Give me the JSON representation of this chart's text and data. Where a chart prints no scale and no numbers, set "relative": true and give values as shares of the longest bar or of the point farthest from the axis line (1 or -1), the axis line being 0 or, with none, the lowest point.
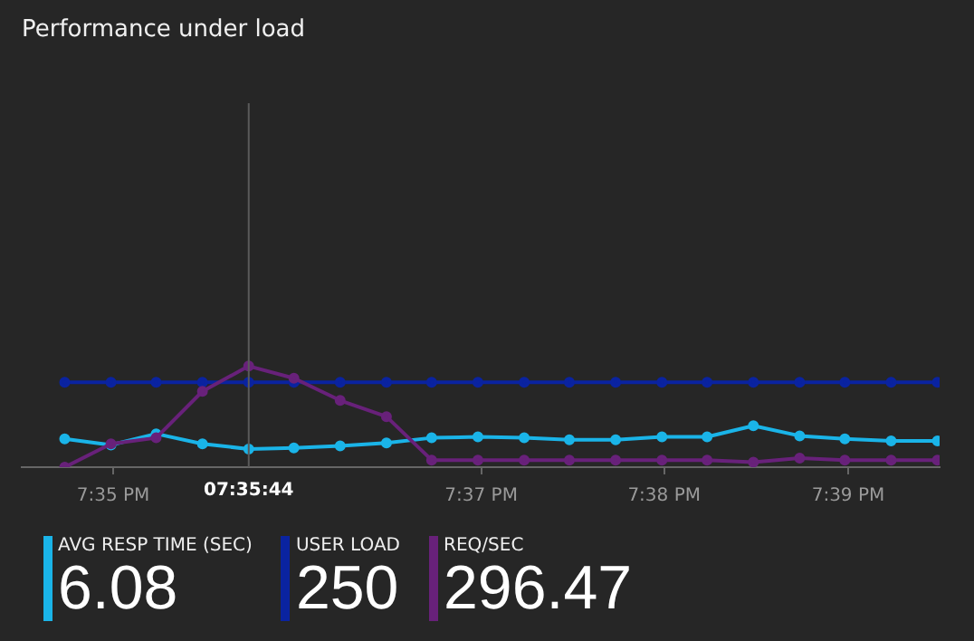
{
  "chart_data": {
    "type": "line",
    "title": "Performance under load",
    "relative": true,
    "legend": "bottom",
    "marker": "circle",
    "grid": false,
    "x": [
      19.5789,
      19.5831,
      19.5872,
      19.5914,
      19.5956,
      19.5997,
      19.6039,
      19.6081,
      19.6122,
      19.6164,
      19.6206,
      19.6247,
      19.6289,
      19.6331,
      19.6372,
      19.6414,
      19.6456,
      19.6497,
      19.6539,
      19.6581
    ],
    "xlim": [
      19.575,
      19.6583
    ],
    "xticks": [
      {
        "value": 19.5833,
        "label": "7:35 PM"
      },
      {
        "value": 19.6167,
        "label": "7:37 PM"
      },
      {
        "value": 19.6333,
        "label": "7:38 PM"
      },
      {
        "value": 19.65,
        "label": "7:39 PM"
      }
    ],
    "ref_lines": [
      {
        "axis": "x",
        "value": 19.5956,
        "color": "#5a5a5a"
      }
    ],
    "series": [
      {
        "name": "AVG RESP TIME (SEC)",
        "color": "#1ab4e8",
        "values": [
          0.28,
          0.22,
          0.33,
          0.23,
          0.18,
          0.19,
          0.21,
          0.24,
          0.29,
          0.3,
          0.29,
          0.27,
          0.27,
          0.3,
          0.3,
          0.41,
          0.31,
          0.28,
          0.26,
          0.26
        ]
      },
      {
        "name": "USER LOAD",
        "color": "#0a23a0",
        "values": [
          0.84,
          0.84,
          0.84,
          0.84,
          0.84,
          0.84,
          0.84,
          0.84,
          0.84,
          0.84,
          0.84,
          0.84,
          0.84,
          0.84,
          0.84,
          0.84,
          0.84,
          0.84,
          0.84,
          0.84
        ]
      },
      {
        "name": "REQ/SEC",
        "color": "#68217a",
        "values": [
          0,
          0.23,
          0.29,
          0.75,
          1,
          0.88,
          0.66,
          0.5,
          0.07,
          0.07,
          0.07,
          0.07,
          0.07,
          0.07,
          0.07,
          0.05,
          0.09,
          0.07,
          0.07,
          0.07
        ]
      }
    ],
    "annotations": [
      "6.08",
      "250",
      "296.47",
      "07:35:44"
    ]
  }
}
